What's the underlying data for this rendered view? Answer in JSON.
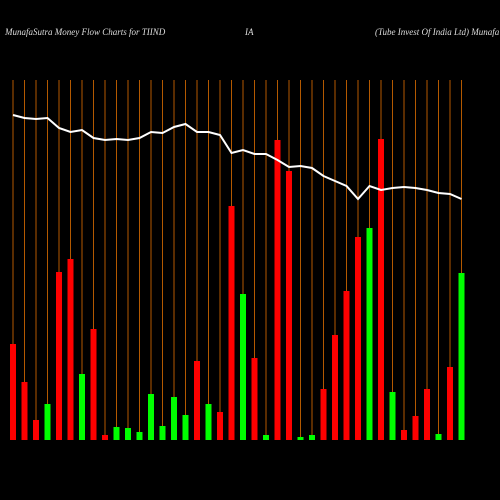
{
  "chart_data": {
    "type": "bar",
    "title_parts": [
      "MunafaSutra  Money Flow  Charts for TIIND",
      "IA",
      "(Tube   Invest Of India  Ltd) Munafa"
    ],
    "categories": [
      null,
      null,
      null,
      null,
      null,
      null,
      null,
      null,
      null,
      null,
      null,
      null,
      null,
      null,
      null,
      null,
      null,
      null,
      null,
      null,
      null,
      null,
      null,
      null,
      null,
      null,
      null,
      null,
      null,
      null,
      null,
      null,
      null,
      null,
      null,
      null,
      null,
      null,
      null,
      null
    ],
    "values": [
      96,
      58,
      20,
      36,
      168,
      181,
      66,
      111,
      5,
      13,
      12,
      8,
      46,
      14,
      43,
      25,
      79,
      36,
      28,
      234,
      146,
      82,
      5,
      300,
      269,
      3,
      5,
      51,
      105,
      149,
      203,
      212,
      301,
      48,
      10,
      24,
      51,
      6,
      73,
      167
    ],
    "colors": [
      "#ff0000",
      "#ff0000",
      "#ff0000",
      "#00ff00",
      "#ff0000",
      "#ff0000",
      "#00ff00",
      "#ff0000",
      "#ff0000",
      "#00ff00",
      "#00ff00",
      "#00ff00",
      "#00ff00",
      "#00ff00",
      "#00ff00",
      "#00ff00",
      "#ff0000",
      "#00ff00",
      "#ff0000",
      "#ff0000",
      "#00ff00",
      "#ff0000",
      "#00ff00",
      "#ff0000",
      "#ff0000",
      "#00ff00",
      "#00ff00",
      "#ff0000",
      "#ff0000",
      "#ff0000",
      "#ff0000",
      "#00ff00",
      "#ff0000",
      "#00ff00",
      "#ff0000",
      "#ff0000",
      "#ff0000",
      "#00ff00",
      "#ff0000",
      "#00ff00"
    ],
    "line": {
      "color": "#ffffff",
      "values": [
        325,
        322,
        321,
        322,
        312,
        308,
        310,
        302,
        300,
        301,
        300,
        302,
        308,
        307,
        313,
        316,
        308,
        308,
        305,
        287,
        290,
        286,
        286,
        280,
        273,
        274,
        272,
        264,
        259,
        254,
        241,
        254,
        250,
        252,
        253,
        252,
        250,
        247,
        246,
        241
      ]
    },
    "ylim": [
      0,
      360
    ],
    "grid_color": "#b35900"
  }
}
